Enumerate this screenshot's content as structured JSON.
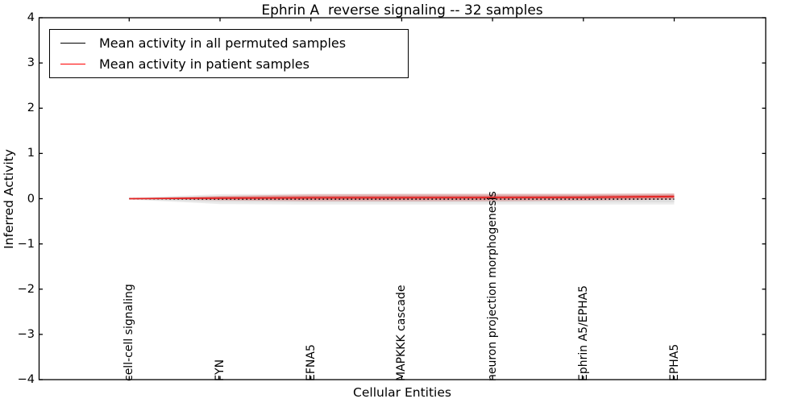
{
  "figure": {
    "title": "Ephrin A  reverse signaling -- 32 samples",
    "xlabel": "Cellular Entities",
    "ylabel": "Inferred Activity"
  },
  "legend": {
    "position": "upper left",
    "items": [
      {
        "label": "Mean activity in all permuted samples",
        "color": "#000000"
      },
      {
        "label": "Mean activity in patient samples",
        "color": "#ff0000"
      }
    ]
  },
  "chart_data": {
    "type": "line",
    "title": "Ephrin A  reverse signaling -- 32 samples",
    "xlabel": "Cellular Entities",
    "ylabel": "Inferred Activity",
    "ylim": [
      -4,
      4
    ],
    "yticks": [
      4,
      3,
      2,
      1,
      0,
      -1,
      -2,
      -3,
      -4
    ],
    "ytick_labels": [
      "4",
      "3",
      "2",
      "1",
      "0",
      "−1",
      "−2",
      "−3",
      "−4"
    ],
    "categories": [
      "cell-cell signaling",
      "FYN",
      "EFNA5",
      "MAPKKK cascade",
      "neuron projection morphogenesis",
      "Ephrin A5/EPHA5",
      "EPHA5"
    ],
    "grid": false,
    "legend_position": "upper left",
    "series": [
      {
        "name": "Mean activity in all permuted samples",
        "color": "#000000",
        "linestyle": "dotted",
        "band_color": "#bbbbbb",
        "values": [
          0.0,
          -0.01,
          -0.01,
          -0.01,
          -0.01,
          -0.01,
          -0.01
        ],
        "std": [
          0.02,
          0.11,
          0.12,
          0.12,
          0.12,
          0.12,
          0.12
        ]
      },
      {
        "name": "Mean activity in patient samples",
        "color": "#e62222",
        "linestyle": "solid",
        "band_color": "#e06666",
        "values": [
          0.0,
          0.012,
          0.02,
          0.022,
          0.025,
          0.03,
          0.048
        ],
        "std": [
          0.006,
          0.05,
          0.075,
          0.08,
          0.08,
          0.075,
          0.07
        ]
      }
    ]
  }
}
